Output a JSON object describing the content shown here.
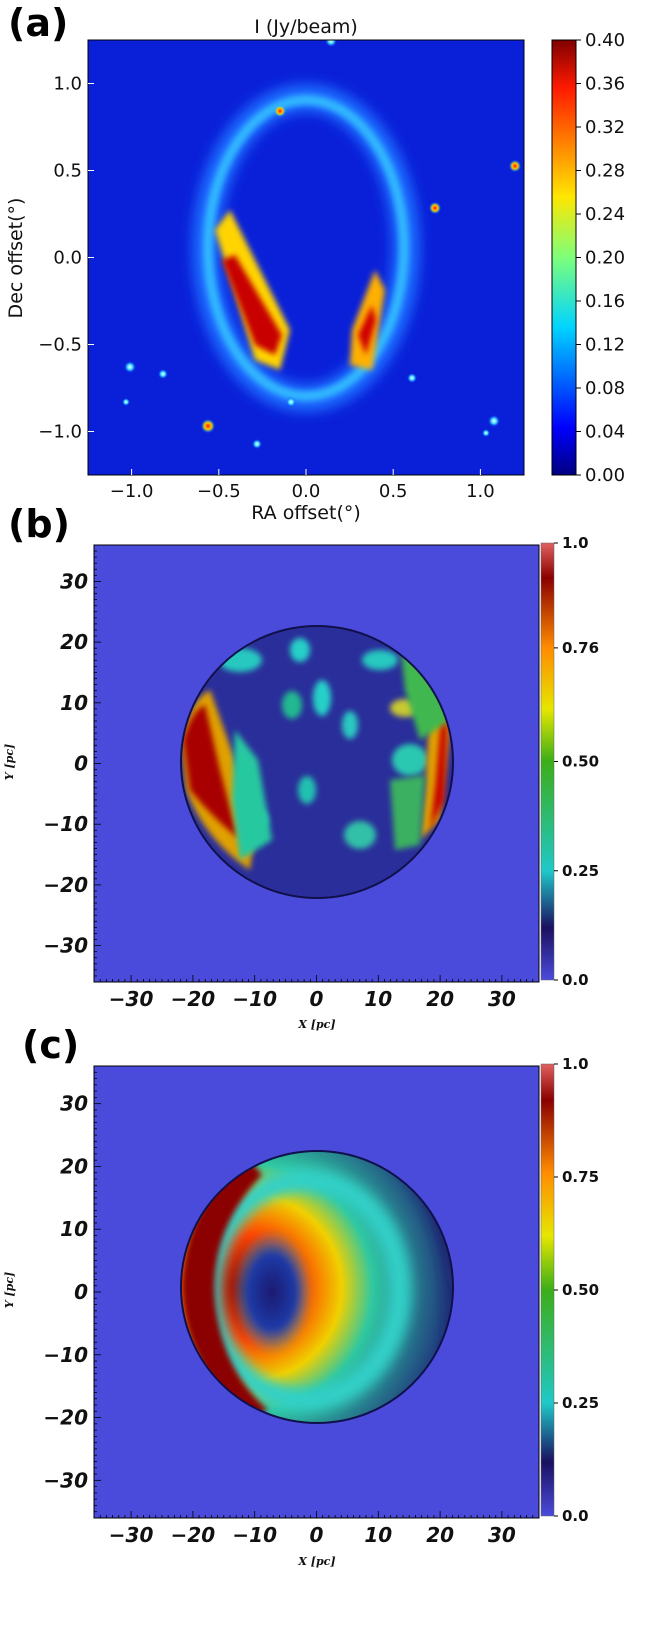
{
  "panels": [
    {
      "letter": "(a)"
    },
    {
      "letter": "(b)"
    },
    {
      "letter": "(c)"
    }
  ],
  "chart_data": [
    {
      "type": "heatmap",
      "title": "I (Jy/beam)",
      "xlabel": "RA offset(°)",
      "ylabel": "Dec offset(°)",
      "xlim": [
        -1.25,
        1.25
      ],
      "ylim": [
        -1.25,
        1.25
      ],
      "x_ticks": [
        "−1.0",
        "−0.5",
        "0.0",
        "0.5",
        "1.0"
      ],
      "y_ticks": [
        "1.0",
        "0.5",
        "0.0",
        "−0.5",
        "−1.0"
      ],
      "colorbar": {
        "min": 0.0,
        "max": 0.4,
        "ticks": [
          "0.40",
          "0.36",
          "0.32",
          "0.28",
          "0.24",
          "0.20",
          "0.16",
          "0.12",
          "0.08",
          "0.04",
          "0.00"
        ]
      },
      "colormap": "jet",
      "description_points": [
        {
          "x": -0.4,
          "y": -0.3,
          "value": 0.4
        },
        {
          "x": 0.35,
          "y": -0.5,
          "value": 0.34
        },
        {
          "x": -0.55,
          "y": 0.15,
          "value": 0.22
        },
        {
          "x": 0.78,
          "y": 0.27,
          "value": 0.3
        },
        {
          "x": -0.11,
          "y": 0.83,
          "value": 0.28
        }
      ]
    },
    {
      "type": "heatmap",
      "xlabel": "X [pc]",
      "ylabel": "Y [pc]",
      "xlim": [
        -36,
        36
      ],
      "ylim": [
        -36,
        36
      ],
      "x_ticks": [
        "−30",
        "−20",
        "−10",
        "0",
        "10",
        "20",
        "30"
      ],
      "y_ticks": [
        "30",
        "20",
        "10",
        "0",
        "−10",
        "−20",
        "−30"
      ],
      "colorbar": {
        "min": 0.0,
        "max": 1.0,
        "ticks": [
          "1.0",
          "0.76",
          "0.50",
          "0.25",
          "0.0"
        ]
      },
      "colormap": "jet",
      "disk_radius_pc": 21.5
    },
    {
      "type": "heatmap",
      "xlabel": "X [pc]",
      "ylabel": "Y [pc]",
      "xlim": [
        -36,
        36
      ],
      "ylim": [
        -36,
        36
      ],
      "x_ticks": [
        "−30",
        "−20",
        "−10",
        "0",
        "10",
        "20",
        "30"
      ],
      "y_ticks": [
        "30",
        "20",
        "10",
        "0",
        "−10",
        "−20",
        "−30"
      ],
      "colorbar": {
        "min": 0.0,
        "max": 1.0,
        "ticks": [
          "1.0",
          "0.75",
          "0.50",
          "0.25",
          "0.0"
        ]
      },
      "colormap": "jet",
      "disk_radius_pc": 21.5
    }
  ]
}
